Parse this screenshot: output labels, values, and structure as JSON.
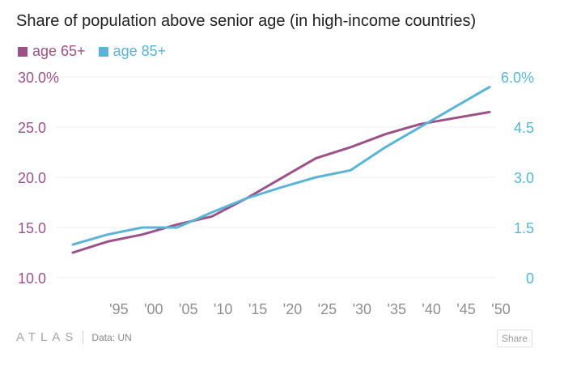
{
  "chart_data": {
    "type": "line",
    "title": "Share of population above senior age (in high-income countries)",
    "x": [
      1990,
      1995,
      2000,
      2005,
      2010,
      2015,
      2020,
      2025,
      2030,
      2035,
      2040,
      2045,
      2050
    ],
    "x_tick_labels": [
      "'95",
      "'00",
      "'05",
      "'10",
      "'15",
      "'20",
      "'25",
      "'30",
      "'35",
      "'40",
      "'45",
      "'50"
    ],
    "y_left": {
      "range": [
        10,
        30
      ],
      "ticks": [
        "10.0",
        "15.0",
        "20.0",
        "25.0",
        "30.0%"
      ]
    },
    "y_right": {
      "range": [
        0,
        6
      ],
      "ticks": [
        "0",
        "1.5",
        "3.0",
        "4.5",
        "6.0%"
      ]
    },
    "series": [
      {
        "name": "age 65+",
        "axis": "left",
        "color": "#9c5188",
        "values": [
          12.5,
          13.6,
          14.3,
          15.3,
          16.1,
          17.9,
          19.9,
          21.9,
          23.0,
          24.3,
          25.3,
          25.9,
          26.5
        ]
      },
      {
        "name": "age 85+",
        "axis": "right",
        "color": "#5ab4d6",
        "values": [
          0.99,
          1.29,
          1.5,
          1.5,
          1.95,
          2.37,
          2.7,
          3.0,
          3.21,
          3.9,
          4.5,
          5.1,
          5.7
        ]
      }
    ],
    "grid": true,
    "legend_position": "top-left"
  },
  "footer": {
    "brand": "ATLAS",
    "source": "Data: UN",
    "share_label": "Share"
  },
  "colors": {
    "left_axis": "#9c5188",
    "right_axis": "#5ab4d6",
    "x_axis": "#8f8f8f",
    "grid": "#ececec"
  }
}
